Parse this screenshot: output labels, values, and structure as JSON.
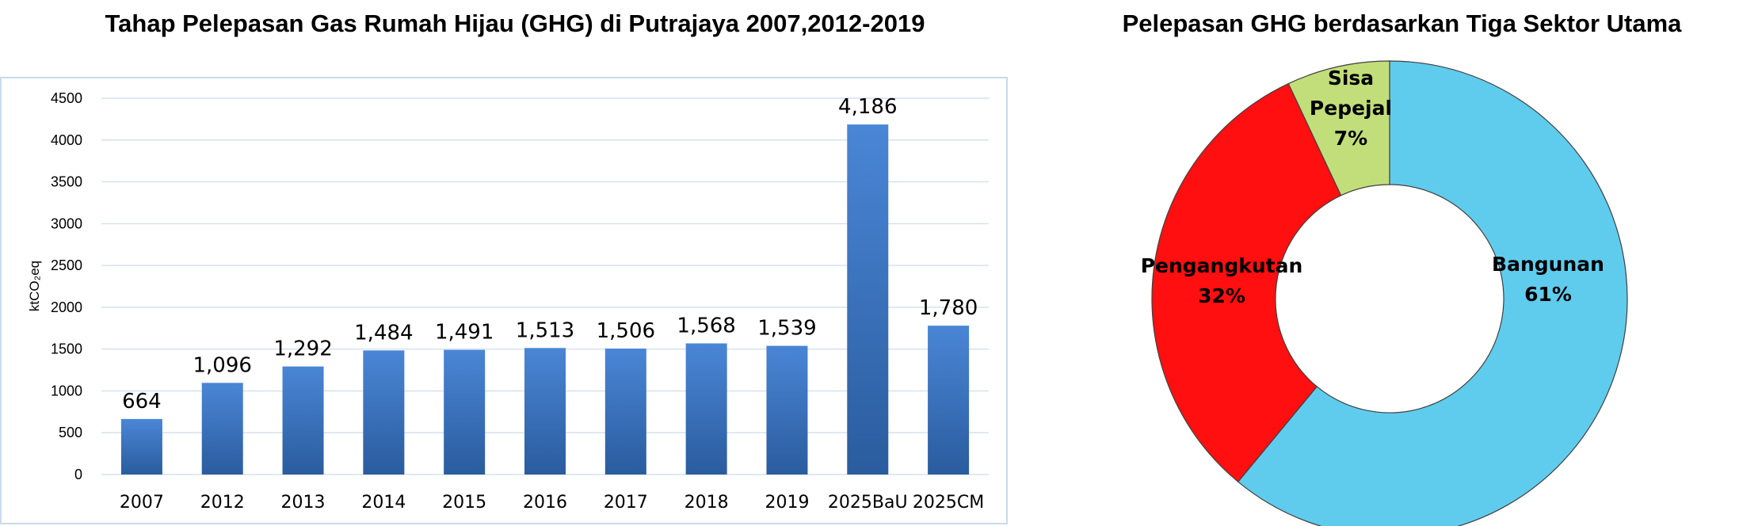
{
  "colors": {
    "bar_top": "#4A86D6",
    "bar_bottom": "#2A5C9E",
    "grid": "#D6E2EE",
    "plot_border": "#C9DAEA",
    "slice_bangunan": "#5FCCEE",
    "slice_pengangkutan": "#FF0F0F",
    "slice_sisa": "#C2DE7A"
  },
  "chart_data": [
    {
      "type": "bar",
      "title": "Tahap Pelepasan Gas Rumah Hijau (GHG) di Putrajaya 2007,2012-2019",
      "ylabel": "ktCO₂eq",
      "ylim": [
        0,
        4500
      ],
      "yticks": [
        "0",
        "500",
        "1000",
        "1500",
        "2000",
        "2500",
        "3000",
        "3500",
        "4000",
        "4500"
      ],
      "grid": true,
      "categories": [
        "2007",
        "2012",
        "2013",
        "2014",
        "2015",
        "2016",
        "2017",
        "2018",
        "2019",
        "2025BaU",
        "2025CM"
      ],
      "values": [
        664,
        1096,
        1292,
        1484,
        1491,
        1513,
        1506,
        1568,
        1539,
        4186,
        1780
      ],
      "data_labels": [
        "664",
        "1,096",
        "1,292",
        "1,484",
        "1,491",
        "1,513",
        "1,506",
        "1,568",
        "1,539",
        "4,186",
        "1,780"
      ]
    },
    {
      "type": "pie",
      "variant": "donut",
      "title": "Pelepasan GHG berdasarkan Tiga Sektor Utama",
      "slices": [
        {
          "key": "bangunan",
          "name": "Bangunan",
          "value": 61,
          "label": "61%"
        },
        {
          "key": "pengangkutan",
          "name": "Pengangkutan",
          "value": 32,
          "label": "32%"
        },
        {
          "key": "sisa",
          "name_lines": [
            "Sisa",
            "Pepejal"
          ],
          "value": 7,
          "label": "7%"
        }
      ]
    }
  ]
}
